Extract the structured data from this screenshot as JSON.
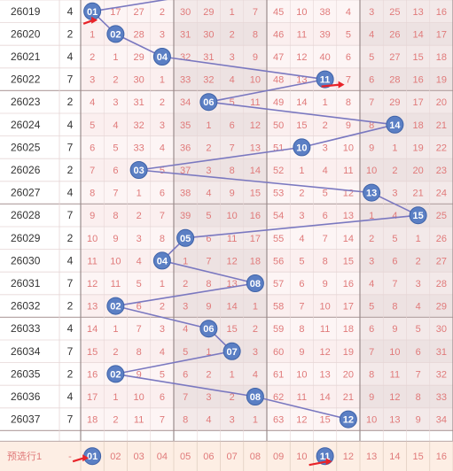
{
  "chart_data": {
    "type": "table",
    "columns": [
      "01",
      "02",
      "03",
      "04",
      "05",
      "06",
      "07",
      "08",
      "09",
      "10",
      "11",
      "12",
      "13",
      "14",
      "15",
      "16"
    ],
    "rows": [
      {
        "period": "26019",
        "span": "4",
        "cells": [
          "01",
          "17",
          "27",
          "2",
          "30",
          "29",
          "1",
          "7",
          "45",
          "10",
          "38",
          "4",
          "3",
          "25",
          "13",
          "16"
        ],
        "hit": 1
      },
      {
        "period": "26020",
        "span": "2",
        "cells": [
          "1",
          "02",
          "28",
          "3",
          "31",
          "30",
          "2",
          "8",
          "46",
          "11",
          "39",
          "5",
          "4",
          "26",
          "14",
          "17"
        ],
        "hit": 2
      },
      {
        "period": "26021",
        "span": "4",
        "cells": [
          "2",
          "1",
          "29",
          "04",
          "32",
          "31",
          "3",
          "9",
          "47",
          "12",
          "40",
          "6",
          "5",
          "27",
          "15",
          "18"
        ],
        "hit": 4
      },
      {
        "period": "26022",
        "span": "7",
        "cells": [
          "3",
          "2",
          "30",
          "1",
          "33",
          "32",
          "4",
          "10",
          "48",
          "13",
          "11",
          "7",
          "6",
          "28",
          "16",
          "19"
        ],
        "hit": 11
      },
      {
        "period": "26023",
        "span": "2",
        "cells": [
          "4",
          "3",
          "31",
          "2",
          "34",
          "06",
          "5",
          "11",
          "49",
          "14",
          "1",
          "8",
          "7",
          "29",
          "17",
          "20"
        ],
        "hit": 6
      },
      {
        "period": "26024",
        "span": "4",
        "cells": [
          "5",
          "4",
          "32",
          "3",
          "35",
          "1",
          "6",
          "12",
          "50",
          "15",
          "2",
          "9",
          "8",
          "14",
          "18",
          "21"
        ],
        "hit": 14
      },
      {
        "period": "26025",
        "span": "7",
        "cells": [
          "6",
          "5",
          "33",
          "4",
          "36",
          "2",
          "7",
          "13",
          "51",
          "10",
          "3",
          "10",
          "9",
          "1",
          "19",
          "22"
        ],
        "hit": 10
      },
      {
        "period": "26026",
        "span": "2",
        "cells": [
          "7",
          "6",
          "03",
          "5",
          "37",
          "3",
          "8",
          "14",
          "52",
          "1",
          "4",
          "11",
          "10",
          "2",
          "20",
          "23"
        ],
        "hit": 3
      },
      {
        "period": "26027",
        "span": "4",
        "cells": [
          "8",
          "7",
          "1",
          "6",
          "38",
          "4",
          "9",
          "15",
          "53",
          "2",
          "5",
          "12",
          "13",
          "3",
          "21",
          "24"
        ],
        "hit": 13
      },
      {
        "period": "26028",
        "span": "7",
        "cells": [
          "9",
          "8",
          "2",
          "7",
          "39",
          "5",
          "10",
          "16",
          "54",
          "3",
          "6",
          "13",
          "1",
          "4",
          "15",
          "25"
        ],
        "hit": 15
      },
      {
        "period": "26029",
        "span": "2",
        "cells": [
          "10",
          "9",
          "3",
          "8",
          "05",
          "6",
          "11",
          "17",
          "55",
          "4",
          "7",
          "14",
          "2",
          "5",
          "1",
          "26"
        ],
        "hit": 5
      },
      {
        "period": "26030",
        "span": "4",
        "cells": [
          "11",
          "10",
          "4",
          "04",
          "1",
          "7",
          "12",
          "18",
          "56",
          "5",
          "8",
          "15",
          "3",
          "6",
          "2",
          "27"
        ],
        "hit": 4
      },
      {
        "period": "26031",
        "span": "7",
        "cells": [
          "12",
          "11",
          "5",
          "1",
          "2",
          "8",
          "13",
          "08",
          "57",
          "6",
          "9",
          "16",
          "4",
          "7",
          "3",
          "28"
        ],
        "hit": 8
      },
      {
        "period": "26032",
        "span": "2",
        "cells": [
          "13",
          "02",
          "6",
          "2",
          "3",
          "9",
          "14",
          "1",
          "58",
          "7",
          "10",
          "17",
          "5",
          "8",
          "4",
          "29"
        ],
        "hit": 2
      },
      {
        "period": "26033",
        "span": "4",
        "cells": [
          "14",
          "1",
          "7",
          "3",
          "4",
          "06",
          "15",
          "2",
          "59",
          "8",
          "11",
          "18",
          "6",
          "9",
          "5",
          "30"
        ],
        "hit": 6
      },
      {
        "period": "26034",
        "span": "7",
        "cells": [
          "15",
          "2",
          "8",
          "4",
          "5",
          "1",
          "07",
          "3",
          "60",
          "9",
          "12",
          "19",
          "7",
          "10",
          "6",
          "31"
        ],
        "hit": 7
      },
      {
        "period": "26035",
        "span": "2",
        "cells": [
          "16",
          "02",
          "9",
          "5",
          "6",
          "2",
          "1",
          "4",
          "61",
          "10",
          "13",
          "20",
          "8",
          "11",
          "7",
          "32"
        ],
        "hit": 2
      },
      {
        "period": "26036",
        "span": "4",
        "cells": [
          "17",
          "1",
          "10",
          "6",
          "7",
          "3",
          "2",
          "08",
          "62",
          "11",
          "14",
          "21",
          "9",
          "12",
          "8",
          "33"
        ],
        "hit": 8
      },
      {
        "period": "26037",
        "span": "7",
        "cells": [
          "18",
          "2",
          "11",
          "7",
          "8",
          "4",
          "3",
          "1",
          "63",
          "12",
          "15",
          "12",
          "10",
          "13",
          "9",
          "34"
        ],
        "hit": 12
      }
    ],
    "footer": {
      "label": "预选行1",
      "dash": "-",
      "cells": [
        "01",
        "02",
        "03",
        "04",
        "05",
        "06",
        "07",
        "08",
        "09",
        "10",
        "11",
        "12",
        "13",
        "14",
        "15",
        "16"
      ],
      "selected": [
        1,
        11
      ]
    },
    "colors": {
      "ball": "#5b7fc4",
      "ballBorder": "#3e62a8",
      "line": "#7a78c0",
      "arrow": "#e8242a",
      "cellText": "#e07a7a",
      "gridLine": "#e6d6d6",
      "shadeA": "#fbf0f0",
      "shadeB": "#f2e7e7",
      "gray": "#e8e4e4",
      "footerBg": "#fdeee4"
    }
  }
}
